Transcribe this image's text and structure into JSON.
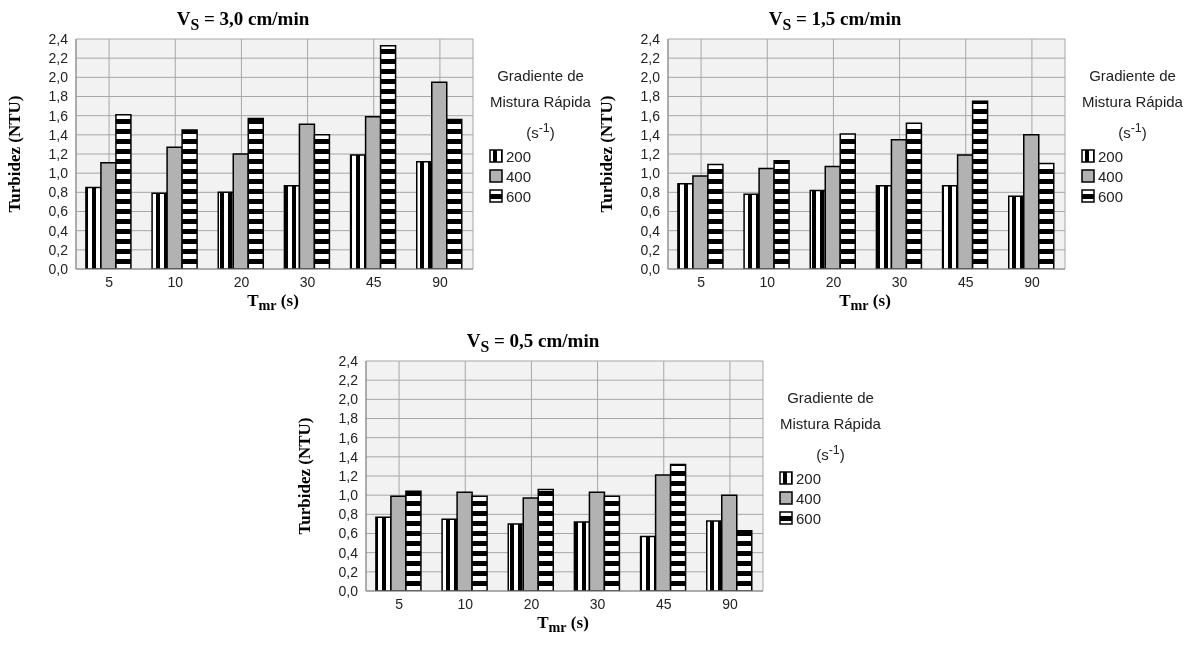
{
  "chart_data": [
    {
      "type": "bar",
      "title": "V$_{S}$ = 3,0 cm/min",
      "xlabel": "T$_{mr}$ (s)",
      "ylabel": "Turbidez (NTU)",
      "legend_title": "Gradiente de Mistura Rápida (s$^{-1}$)",
      "categories": [
        "5",
        "10",
        "20",
        "30",
        "45",
        "90"
      ],
      "series": [
        {
          "name": "200",
          "color": "#000000",
          "values": [
            0.85,
            0.79,
            0.8,
            0.87,
            1.19,
            1.12
          ]
        },
        {
          "name": "400",
          "color": "#b2b2b2",
          "values": [
            1.11,
            1.27,
            1.2,
            1.51,
            1.59,
            1.95
          ]
        },
        {
          "name": "600",
          "color": "#000000",
          "values": [
            1.61,
            1.45,
            1.57,
            1.4,
            2.33,
            1.56
          ]
        }
      ],
      "ylim": [
        0,
        2.4
      ],
      "yticks": [
        {
          "value": 0,
          "label": "0,0"
        },
        {
          "value": 0.2,
          "label": "0,2"
        },
        {
          "value": 0.4,
          "label": "0,4"
        },
        {
          "value": 0.6,
          "label": "0,6"
        },
        {
          "value": 0.8,
          "label": "0,8"
        },
        {
          "value": 1,
          "label": "1,0"
        },
        {
          "value": 1.2,
          "label": "1,2"
        },
        {
          "value": 1.4,
          "label": "1,4"
        },
        {
          "value": 1.6,
          "label": "1,6"
        },
        {
          "value": 1.8,
          "label": "1,8"
        },
        {
          "value": 2,
          "label": "2,0"
        },
        {
          "value": 2.2,
          "label": "2,2"
        },
        {
          "value": 2.4,
          "label": "2,4"
        }
      ],
      "grid": true,
      "legend": "right"
    },
    {
      "type": "bar",
      "title": "V$_{S}$ = 1,5 cm/min",
      "xlabel": "T$_{mr}$ (s)",
      "ylabel": "Turbidez (NTU)",
      "legend_title": "Gradiente de Mistura Rápida (s$^{-1}$)",
      "categories": [
        "5",
        "10",
        "20",
        "30",
        "45",
        "90"
      ],
      "series": [
        {
          "name": "200",
          "color": "#000000",
          "values": [
            0.89,
            0.78,
            0.82,
            0.87,
            0.87,
            0.76
          ]
        },
        {
          "name": "400",
          "color": "#b2b2b2",
          "values": [
            0.97,
            1.05,
            1.07,
            1.35,
            1.19,
            1.4
          ]
        },
        {
          "name": "600",
          "color": "#000000",
          "values": [
            1.09,
            1.13,
            1.41,
            1.52,
            1.75,
            1.1
          ]
        }
      ],
      "ylim": [
        0,
        2.4
      ],
      "yticks": [
        {
          "value": 0,
          "label": "0,0"
        },
        {
          "value": 0.2,
          "label": "0,2"
        },
        {
          "value": 0.4,
          "label": "0,4"
        },
        {
          "value": 0.6,
          "label": "0,6"
        },
        {
          "value": 0.8,
          "label": "0,8"
        },
        {
          "value": 1,
          "label": "1,0"
        },
        {
          "value": 1.2,
          "label": "1,2"
        },
        {
          "value": 1.4,
          "label": "1,4"
        },
        {
          "value": 1.6,
          "label": "1,6"
        },
        {
          "value": 1.8,
          "label": "1,8"
        },
        {
          "value": 2,
          "label": "2,0"
        },
        {
          "value": 2.2,
          "label": "2,2"
        },
        {
          "value": 2.4,
          "label": "2,4"
        }
      ],
      "grid": true,
      "legend": "right"
    },
    {
      "type": "bar",
      "title": "V$_{S}$ = 0,5 cm/min",
      "xlabel": "T$_{mr}$ (s)",
      "ylabel": "Turbidez (NTU)",
      "legend_title": "Gradiente de Mistura Rápida (s$^{-1}$)",
      "categories": [
        "5",
        "10",
        "20",
        "30",
        "45",
        "90"
      ],
      "series": [
        {
          "name": "200",
          "color": "#000000",
          "values": [
            0.77,
            0.75,
            0.7,
            0.72,
            0.57,
            0.73
          ]
        },
        {
          "name": "400",
          "color": "#b2b2b2",
          "values": [
            0.99,
            1.03,
            0.97,
            1.03,
            1.21,
            1.0
          ]
        },
        {
          "name": "600",
          "color": "#000000",
          "values": [
            1.04,
            0.99,
            1.06,
            0.99,
            1.32,
            0.63
          ]
        }
      ],
      "ylim": [
        0,
        2.4
      ],
      "yticks": [
        {
          "value": 0,
          "label": "0,0"
        },
        {
          "value": 0.2,
          "label": "0,2"
        },
        {
          "value": 0.4,
          "label": "0,4"
        },
        {
          "value": 0.6,
          "label": "0,6"
        },
        {
          "value": 0.8,
          "label": "0,8"
        },
        {
          "value": 1,
          "label": "1,0"
        },
        {
          "value": 1.2,
          "label": "1,2"
        },
        {
          "value": 1.4,
          "label": "1,4"
        },
        {
          "value": 1.6,
          "label": "1,6"
        },
        {
          "value": 1.8,
          "label": "1,8"
        },
        {
          "value": 2,
          "label": "2,0"
        },
        {
          "value": 2.2,
          "label": "2,2"
        },
        {
          "value": 2.4,
          "label": "2,4"
        }
      ],
      "grid": true,
      "legend": "right"
    }
  ]
}
